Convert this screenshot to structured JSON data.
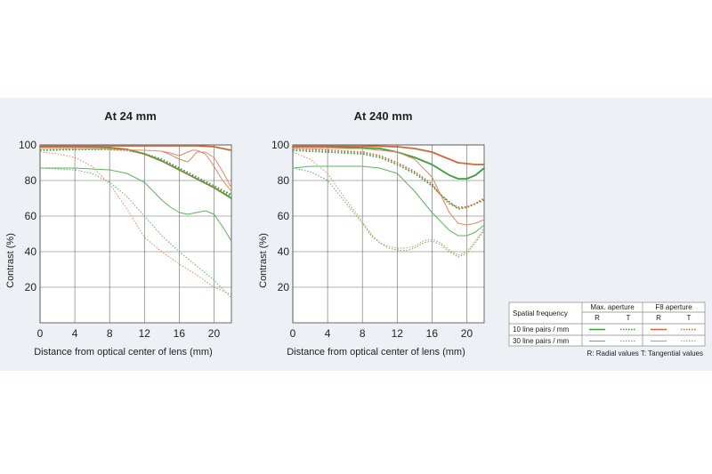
{
  "chart_data": [
    {
      "type": "line",
      "title": "At 24 mm",
      "xlabel": "Distance from optical center of lens (mm)",
      "ylabel": "Contrast (%)",
      "xlim": [
        0,
        22
      ],
      "ylim": [
        0,
        100
      ],
      "xticks": [
        "0",
        "4",
        "8",
        "12",
        "16",
        "20"
      ],
      "yticks": [
        "20",
        "40",
        "60",
        "80",
        "100"
      ],
      "grid": true,
      "series": [
        {
          "name": "10 line pairs / mm Max. aperture R",
          "color": "#3aa23a",
          "style": "solid",
          "width": 1.8,
          "x": [
            0,
            4,
            8,
            10,
            12,
            14,
            16,
            18,
            20,
            22
          ],
          "y": [
            99,
            99,
            98.5,
            97.5,
            95,
            91,
            86,
            81,
            76,
            70
          ]
        },
        {
          "name": "10 line pairs / mm Max. aperture T",
          "color": "#3aa23a",
          "style": "dotted",
          "width": 1.8,
          "x": [
            0,
            4,
            8,
            10,
            12,
            14,
            16,
            18,
            20,
            22
          ],
          "y": [
            97,
            97.5,
            97.5,
            97,
            95,
            92,
            87,
            82,
            77,
            72
          ]
        },
        {
          "name": "10 line pairs / mm F8 aperture R",
          "color": "#d0673a",
          "style": "solid",
          "width": 1.8,
          "x": [
            0,
            4,
            8,
            12,
            16,
            18,
            20,
            21,
            22
          ],
          "y": [
            99.5,
            99.5,
            99.5,
            99.5,
            99.5,
            99.5,
            99,
            98,
            97
          ]
        },
        {
          "name": "10 line pairs / mm F8 aperture T",
          "color": "#d0673a",
          "style": "dotted",
          "width": 1.8,
          "x": [
            0,
            4,
            8,
            10,
            12,
            14,
            16,
            18,
            20,
            22
          ],
          "y": [
            99,
            99,
            98.5,
            97.5,
            95,
            91,
            86,
            81,
            76,
            71
          ]
        },
        {
          "name": "30 line pairs / mm Max. aperture R",
          "color": "#5ab55a",
          "style": "solid",
          "width": 1,
          "x": [
            0,
            2,
            4,
            6,
            8,
            10,
            12,
            14,
            15,
            16,
            17,
            18,
            19,
            20,
            21,
            22
          ],
          "y": [
            87,
            87,
            87,
            86.5,
            86,
            84,
            79,
            69,
            65,
            62,
            61,
            62,
            63,
            61,
            54,
            46
          ]
        },
        {
          "name": "30 line pairs / mm Max. aperture T",
          "color": "#5ab55a",
          "style": "dotted",
          "width": 1,
          "x": [
            0,
            2,
            4,
            6,
            8,
            10,
            12,
            14,
            16,
            18,
            20,
            22
          ],
          "y": [
            87,
            86.5,
            86,
            84,
            79,
            71,
            60,
            49,
            40,
            32,
            24,
            14
          ]
        },
        {
          "name": "30 line pairs / mm F8 aperture R",
          "color": "#e08a64",
          "style": "solid",
          "width": 1,
          "x": [
            0,
            4,
            8,
            12,
            14,
            15,
            16,
            17,
            17.5,
            18,
            19,
            20,
            21,
            22
          ],
          "y": [
            98,
            98,
            97.5,
            97,
            96.5,
            95.5,
            94,
            96,
            97,
            97,
            95,
            88,
            80,
            74
          ]
        },
        {
          "name": "30 line pairs / mm F8 aperture T",
          "color": "#e08a64",
          "style": "dotted",
          "width": 1,
          "x": [
            0,
            2,
            4,
            6,
            8,
            10,
            12,
            14,
            16,
            18,
            20,
            22
          ],
          "y": [
            96,
            95,
            93,
            88,
            78,
            64,
            48,
            40,
            33,
            27,
            20,
            16
          ]
        },
        {
          "name": "30 line pairs / mm F8 aperture R upper",
          "color": "#e08a64",
          "style": "solid",
          "width": 1,
          "x": [
            14,
            15,
            16,
            17,
            17.5,
            18,
            19,
            20,
            21,
            22
          ],
          "y": [
            96.5,
            94.5,
            92,
            90.5,
            93,
            96,
            96,
            93,
            85,
            76
          ]
        }
      ]
    },
    {
      "type": "line",
      "title": "At 240 mm",
      "xlabel": "Distance from optical center of lens (mm)",
      "ylabel": "Contrast (%)",
      "xlim": [
        0,
        22
      ],
      "ylim": [
        0,
        100
      ],
      "xticks": [
        "0",
        "4",
        "8",
        "12",
        "16",
        "20"
      ],
      "yticks": [
        "20",
        "40",
        "60",
        "80",
        "100"
      ],
      "grid": true,
      "series": [
        {
          "name": "10 line pairs / mm Max. aperture R",
          "color": "#3aa23a",
          "style": "solid",
          "width": 1.8,
          "x": [
            0,
            4,
            8,
            10,
            12,
            14,
            16,
            17,
            18,
            19,
            20,
            21,
            22
          ],
          "y": [
            99,
            99,
            98.5,
            98,
            96,
            93,
            89,
            86,
            83,
            81,
            81,
            83,
            87
          ]
        },
        {
          "name": "10 line pairs / mm Max. aperture T",
          "color": "#3aa23a",
          "style": "dotted",
          "width": 1.8,
          "x": [
            0,
            4,
            8,
            10,
            12,
            14,
            16,
            17,
            18,
            19,
            20,
            21,
            22
          ],
          "y": [
            97,
            96,
            95,
            93,
            89,
            84,
            77,
            72,
            68,
            64,
            65,
            67,
            69
          ]
        },
        {
          "name": "10 line pairs / mm F8 aperture R",
          "color": "#d0673a",
          "style": "solid",
          "width": 1.8,
          "x": [
            0,
            4,
            8,
            12,
            14,
            16,
            17,
            18,
            19,
            20,
            21,
            22
          ],
          "y": [
            99.5,
            99.5,
            99.5,
            99,
            98,
            96,
            94,
            92,
            90,
            89.5,
            89,
            89
          ]
        },
        {
          "name": "10 line pairs / mm F8 aperture T",
          "color": "#d0673a",
          "style": "dotted",
          "width": 1.8,
          "x": [
            0,
            4,
            8,
            10,
            12,
            14,
            16,
            17,
            18,
            19,
            20,
            21,
            22
          ],
          "y": [
            98,
            97,
            96,
            94,
            90,
            85,
            78,
            72,
            67,
            65,
            65,
            67,
            70
          ]
        },
        {
          "name": "30 line pairs / mm Max. aperture R",
          "color": "#5ab55a",
          "style": "solid",
          "width": 1,
          "x": [
            0,
            2,
            4,
            6,
            8,
            10,
            12,
            14,
            16,
            17,
            18,
            19,
            20,
            21,
            22
          ],
          "y": [
            87,
            88,
            88,
            88,
            88,
            87,
            84,
            74,
            62,
            57,
            52,
            49,
            49,
            51,
            55
          ]
        },
        {
          "name": "30 line pairs / mm Max. aperture T",
          "color": "#5ab55a",
          "style": "dotted",
          "width": 1,
          "x": [
            0,
            2,
            4,
            6,
            8,
            9,
            10,
            11,
            12,
            13,
            14,
            15,
            16,
            17,
            18,
            19,
            20,
            21,
            22
          ],
          "y": [
            87,
            85,
            80,
            68,
            56,
            49,
            45,
            42,
            41,
            40.5,
            42,
            45,
            46,
            44,
            40,
            37,
            39,
            45,
            52
          ]
        },
        {
          "name": "30 line pairs / mm F8 aperture R",
          "color": "#e08a64",
          "style": "solid",
          "width": 1,
          "x": [
            0,
            4,
            8,
            10,
            12,
            14,
            16,
            17,
            18,
            19,
            20,
            21,
            22
          ],
          "y": [
            98,
            98,
            98,
            97,
            96,
            92,
            82,
            72,
            62,
            56,
            55,
            56,
            58
          ]
        },
        {
          "name": "30 line pairs / mm F8 aperture T",
          "color": "#e08a64",
          "style": "dotted",
          "width": 1,
          "x": [
            0,
            2,
            4,
            6,
            8,
            9,
            10,
            11,
            12,
            13,
            14,
            15,
            16,
            17,
            18,
            19,
            20,
            21,
            22
          ],
          "y": [
            96,
            92,
            84,
            70,
            57,
            50,
            45,
            43,
            42,
            42,
            43,
            46,
            47,
            45,
            41,
            38,
            40,
            46,
            53
          ]
        }
      ]
    }
  ],
  "legend": {
    "header_col1": "Spatial frequency",
    "header_max": "Max. aperture",
    "header_f8": "F8 aperture",
    "sub_r": "R",
    "sub_t": "T",
    "row1": "10 line pairs / mm",
    "row2": "30 line pairs / mm",
    "note": "R: Radial values  T: Tangential values",
    "colors": {
      "green": "#3aa23a",
      "orange": "#d0673a",
      "green_light": "#5ab55a",
      "orange_light": "#e08a64"
    }
  }
}
